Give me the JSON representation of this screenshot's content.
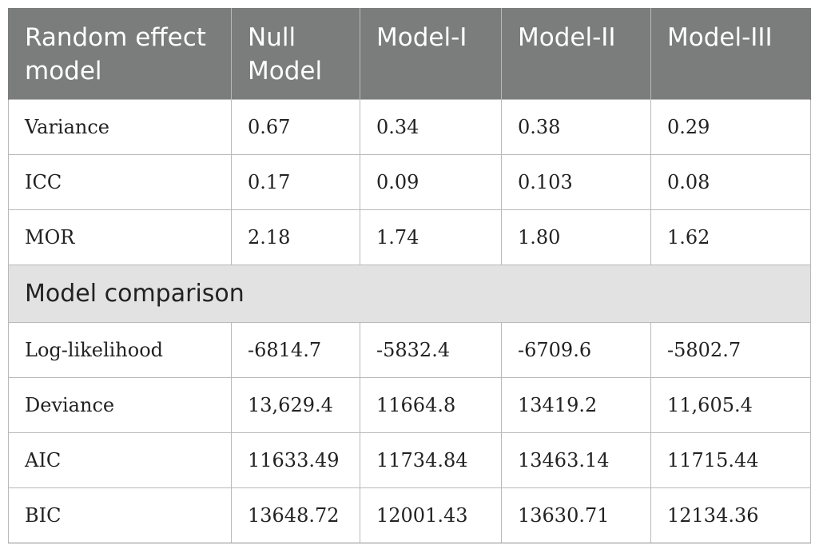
{
  "table": {
    "header": {
      "col0": "Random effect model",
      "col1": "Null Model",
      "col2": "Model-I",
      "col3": "Model-II",
      "col4": "Model-III"
    },
    "random_effects": [
      {
        "label": "Variance",
        "values": [
          "0.67",
          "0.34",
          "0.38",
          "0.29"
        ]
      },
      {
        "label": "ICC",
        "values": [
          "0.17",
          "0.09",
          "0.103",
          "0.08"
        ]
      },
      {
        "label": "MOR",
        "values": [
          "2.18",
          "1.74",
          "1.80",
          "1.62"
        ]
      }
    ],
    "section_title": "Model comparison",
    "comparison": [
      {
        "label": "Log-likelihood",
        "values": [
          "-6814.7",
          "-5832.4",
          "-6709.6",
          "-5802.7"
        ]
      },
      {
        "label": "Deviance",
        "values": [
          "13,629.4",
          "11664.8",
          "13419.2",
          "11,605.4"
        ]
      },
      {
        "label": "AIC",
        "values": [
          "11633.49",
          "11734.84",
          "13463.14",
          "11715.44"
        ]
      },
      {
        "label": "BIC",
        "values": [
          "13648.72",
          "12001.43",
          "13630.71",
          "12134.36"
        ]
      }
    ]
  }
}
